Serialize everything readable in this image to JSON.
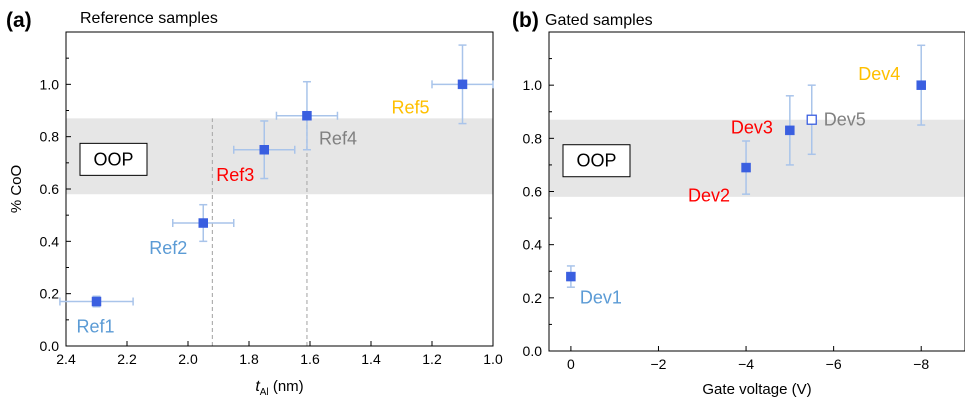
{
  "chart_data": [
    {
      "type": "scatter",
      "panel_label": "(a)",
      "title": "Reference samples",
      "xlabel_main": "t",
      "xlabel_sub": "Al",
      "xlabel_unit": " (nm)",
      "ylabel": "% CoO",
      "xlim": [
        2.4,
        1.0
      ],
      "ylim": [
        0.0,
        1.2
      ],
      "x_ticks": [
        2.4,
        2.2,
        2.0,
        1.8,
        1.6,
        1.4,
        1.2,
        1.0
      ],
      "x_tick_labels": [
        "2.4",
        "2.2",
        "2.0",
        "1.8",
        "1.6",
        "1.4",
        "1.2",
        "1.0"
      ],
      "y_ticks": [
        0.0,
        0.2,
        0.4,
        0.6,
        0.8,
        1.0
      ],
      "y_tick_labels": [
        "0.0",
        "0.2",
        "0.4",
        "0.6",
        "0.8",
        "1.0"
      ],
      "band": {
        "y0": 0.58,
        "y1": 0.87,
        "label": "OOP"
      },
      "vlines": [
        1.92,
        1.61
      ],
      "points": [
        {
          "label": "Ref1",
          "x": 2.3,
          "y": 0.17,
          "xerr": 0.12,
          "yerr": 0.02,
          "color": "#5b9bd5"
        },
        {
          "label": "Ref2",
          "x": 1.95,
          "y": 0.47,
          "xerr": 0.1,
          "yerr": 0.07,
          "color": "#5b9bd5"
        },
        {
          "label": "Ref3",
          "x": 1.75,
          "y": 0.75,
          "xerr": 0.1,
          "yerr": 0.11,
          "color": "#ff0000"
        },
        {
          "label": "Ref4",
          "x": 1.61,
          "y": 0.88,
          "xerr": 0.1,
          "yerr": 0.13,
          "color": "#808080"
        },
        {
          "label": "Ref5",
          "x": 1.1,
          "y": 1.0,
          "xerr": 0.1,
          "yerr": 0.15,
          "color": "#ffc000"
        }
      ]
    },
    {
      "type": "scatter",
      "panel_label": "(b)",
      "title": "Gated samples",
      "xlabel": "Gate voltage (V)",
      "ylabel": "",
      "xlim": [
        0.5,
        -9.0
      ],
      "ylim": [
        0.0,
        1.2
      ],
      "x_ticks": [
        0,
        -2,
        -4,
        -6,
        -8
      ],
      "x_tick_labels": [
        "0",
        "−2",
        "−4",
        "−6",
        "−8"
      ],
      "y_ticks": [
        0.0,
        0.2,
        0.4,
        0.6,
        0.8,
        1.0
      ],
      "y_tick_labels": [
        "0.0",
        "0.2",
        "0.4",
        "0.6",
        "0.8",
        "1.0"
      ],
      "band": {
        "y0": 0.58,
        "y1": 0.87,
        "label": "OOP"
      },
      "points": [
        {
          "label": "Dev1",
          "x": 0.0,
          "y": 0.28,
          "yerr": 0.04,
          "color": "#5b9bd5",
          "filled": true
        },
        {
          "label": "Dev2",
          "x": -4.0,
          "y": 0.69,
          "yerr": 0.1,
          "color": "#ff0000",
          "filled": true
        },
        {
          "label": "Dev3",
          "x": -5.0,
          "y": 0.83,
          "yerr": 0.13,
          "color": "#ff0000",
          "filled": true
        },
        {
          "label": "Dev5",
          "x": -5.5,
          "y": 0.87,
          "yerr": 0.13,
          "color": "#808080",
          "filled": false
        },
        {
          "label": "Dev4",
          "x": -8.0,
          "y": 1.0,
          "yerr": 0.15,
          "color": "#ffc000",
          "filled": true
        }
      ]
    }
  ]
}
